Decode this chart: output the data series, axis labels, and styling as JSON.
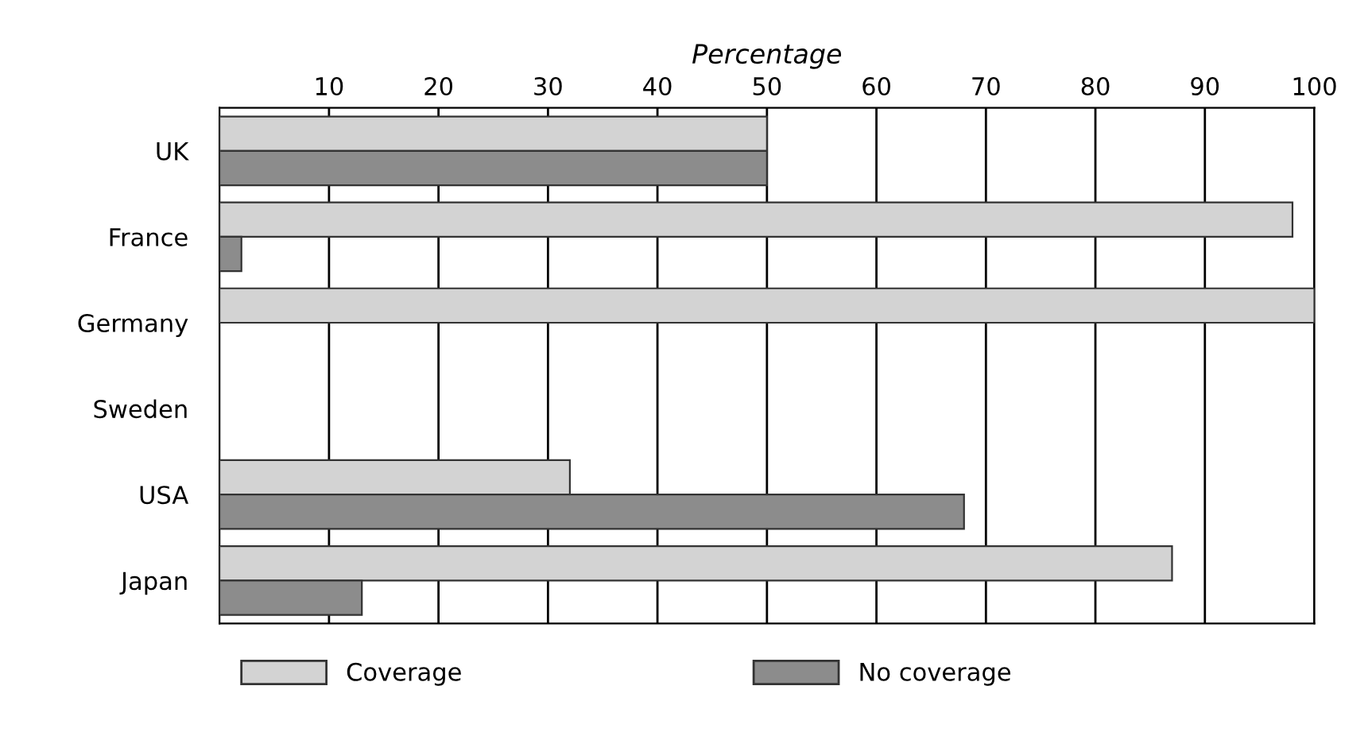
{
  "chart_data": {
    "type": "bar",
    "orientation": "horizontal",
    "xlabel": "Percentage",
    "categories": [
      "UK",
      "France",
      "Germany",
      "Sweden",
      "USA",
      "Japan"
    ],
    "series": [
      {
        "name": "Coverage",
        "color": "#d3d3d3",
        "values": [
          50,
          98,
          100,
          null,
          32,
          87
        ]
      },
      {
        "name": "No coverage",
        "color": "#8c8c8c",
        "values": [
          50,
          2,
          null,
          null,
          68,
          13
        ]
      }
    ],
    "xlim": [
      0,
      100
    ],
    "xticks": [
      10,
      20,
      30,
      40,
      50,
      60,
      70,
      80,
      90,
      100
    ],
    "grid": "x",
    "legend": "bottom"
  }
}
